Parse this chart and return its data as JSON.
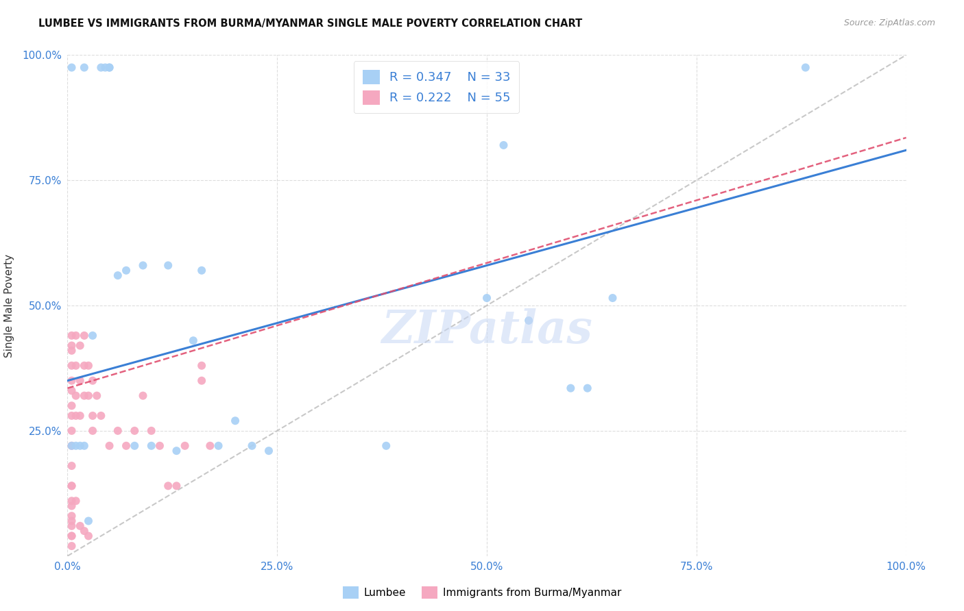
{
  "title": "LUMBEE VS IMMIGRANTS FROM BURMA/MYANMAR SINGLE MALE POVERTY CORRELATION CHART",
  "source": "Source: ZipAtlas.com",
  "ylabel": "Single Male Poverty",
  "xlim": [
    0,
    1
  ],
  "ylim": [
    0,
    1
  ],
  "xticks": [
    0,
    0.25,
    0.5,
    0.75,
    1.0
  ],
  "yticks": [
    0.25,
    0.5,
    0.75,
    1.0
  ],
  "xticklabels": [
    "0.0%",
    "25.0%",
    "50.0%",
    "75.0%",
    "100.0%"
  ],
  "yticklabels": [
    "25.0%",
    "50.0%",
    "75.0%",
    "100.0%"
  ],
  "lumbee_color": "#a8d0f5",
  "burma_color": "#f5a8c0",
  "lumbee_R": 0.347,
  "lumbee_N": 33,
  "burma_R": 0.222,
  "burma_N": 55,
  "lumbee_line_color": "#3a7fd5",
  "burma_line_color": "#e05070",
  "diagonal_color": "#bbbbbb",
  "legend_label1": "Lumbee",
  "legend_label2": "Immigrants from Burma/Myanmar",
  "watermark": "ZIPatlas",
  "lumbee_line_x0": 0.0,
  "lumbee_line_y0": 0.35,
  "lumbee_line_x1": 1.0,
  "lumbee_line_y1": 0.81,
  "burma_line_x0": 0.0,
  "burma_line_y0": 0.335,
  "burma_line_x1": 0.2,
  "burma_line_y1": 0.42,
  "lumbee_x": [
    0.005,
    0.02,
    0.04,
    0.045,
    0.05,
    0.05,
    0.06,
    0.07,
    0.08,
    0.09,
    0.1,
    0.12,
    0.13,
    0.15,
    0.16,
    0.18,
    0.2,
    0.22,
    0.24,
    0.38,
    0.5,
    0.52,
    0.55,
    0.6,
    0.62,
    0.65,
    0.88,
    0.005,
    0.01,
    0.015,
    0.02,
    0.025,
    0.03
  ],
  "lumbee_y": [
    0.975,
    0.975,
    0.975,
    0.975,
    0.975,
    0.975,
    0.56,
    0.57,
    0.22,
    0.58,
    0.22,
    0.58,
    0.21,
    0.43,
    0.57,
    0.22,
    0.27,
    0.22,
    0.21,
    0.22,
    0.515,
    0.82,
    0.47,
    0.335,
    0.335,
    0.515,
    0.975,
    0.22,
    0.22,
    0.22,
    0.22,
    0.07,
    0.44
  ],
  "burma_x": [
    0.005,
    0.005,
    0.005,
    0.005,
    0.005,
    0.005,
    0.005,
    0.005,
    0.005,
    0.005,
    0.005,
    0.005,
    0.01,
    0.01,
    0.01,
    0.01,
    0.015,
    0.015,
    0.015,
    0.02,
    0.02,
    0.02,
    0.025,
    0.025,
    0.03,
    0.03,
    0.035,
    0.04,
    0.05,
    0.06,
    0.07,
    0.08,
    0.09,
    0.1,
    0.11,
    0.12,
    0.13,
    0.14,
    0.16,
    0.17,
    0.005,
    0.005,
    0.005,
    0.005,
    0.005,
    0.005,
    0.005,
    0.005,
    0.005,
    0.01,
    0.015,
    0.02,
    0.025,
    0.03,
    0.16
  ],
  "burma_y": [
    0.44,
    0.42,
    0.41,
    0.38,
    0.35,
    0.33,
    0.3,
    0.28,
    0.25,
    0.22,
    0.18,
    0.14,
    0.44,
    0.38,
    0.32,
    0.28,
    0.42,
    0.35,
    0.28,
    0.44,
    0.38,
    0.32,
    0.38,
    0.32,
    0.35,
    0.28,
    0.32,
    0.28,
    0.22,
    0.25,
    0.22,
    0.25,
    0.32,
    0.25,
    0.22,
    0.14,
    0.14,
    0.22,
    0.38,
    0.22,
    0.14,
    0.11,
    0.08,
    0.06,
    0.04,
    0.02,
    0.1,
    0.07,
    0.04,
    0.11,
    0.06,
    0.05,
    0.04,
    0.25,
    0.35
  ]
}
